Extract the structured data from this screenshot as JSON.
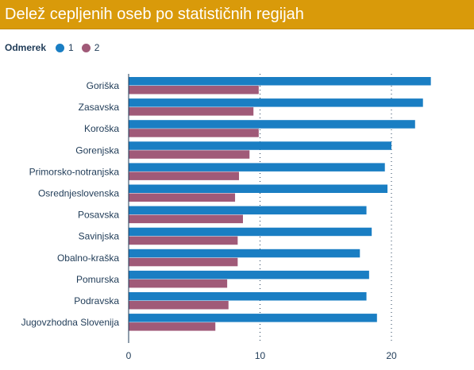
{
  "title": "Delež cepljenih oseb po statističnih regijah",
  "legend": {
    "title": "Odmerek",
    "items": [
      {
        "label": "1",
        "color": "#1a7ec3"
      },
      {
        "label": "2",
        "color": "#a05a78"
      }
    ]
  },
  "chart_data": {
    "type": "bar",
    "orientation": "horizontal",
    "categories": [
      "Goriška",
      "Zasavska",
      "Koroška",
      "Gorenjska",
      "Primorsko-notranjska",
      "Osrednjeslovenska",
      "Posavska",
      "Savinjska",
      "Obalno-kraška",
      "Pomurska",
      "Podravska",
      "Jugovzhodna Slovenija"
    ],
    "series": [
      {
        "name": "1",
        "color": "#1a7ec3",
        "values": [
          23.0,
          22.4,
          21.8,
          20.0,
          19.5,
          19.7,
          18.1,
          18.5,
          17.6,
          18.3,
          18.1,
          18.9
        ]
      },
      {
        "name": "2",
        "color": "#a05a78",
        "values": [
          9.9,
          9.5,
          9.9,
          9.2,
          8.4,
          8.1,
          8.7,
          8.3,
          8.3,
          7.5,
          7.6,
          6.6
        ]
      }
    ],
    "xlim": [
      0,
      25
    ],
    "xticks": [
      0,
      10,
      20
    ],
    "grid": true,
    "legend_position": "top-left"
  }
}
